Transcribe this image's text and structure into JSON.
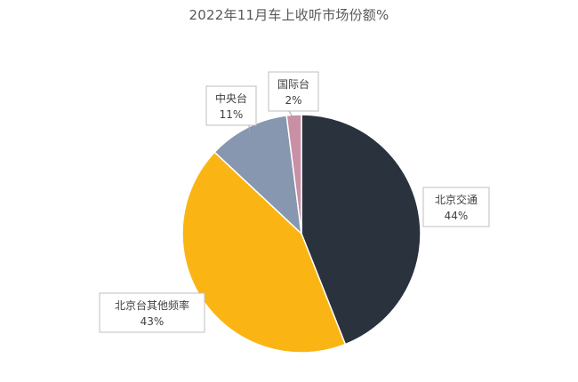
{
  "chart_data": {
    "type": "pie",
    "title": "2022年11月车上收听市场份额%",
    "slices": [
      {
        "label": "北京交通",
        "value": 44,
        "display": "44%",
        "color": "#2a323d"
      },
      {
        "label": "北京台其他频率",
        "value": 43,
        "display": "43%",
        "color": "#fab515"
      },
      {
        "label": "中央台",
        "value": 11,
        "display": "11%",
        "color": "#8697af"
      },
      {
        "label": "国际台",
        "value": 2,
        "display": "2%",
        "color": "#c98fa5"
      }
    ],
    "start_angle": "12 o'clock",
    "direction": "clockwise",
    "legend": "none",
    "data_labels": "category and value in callout boxes"
  }
}
